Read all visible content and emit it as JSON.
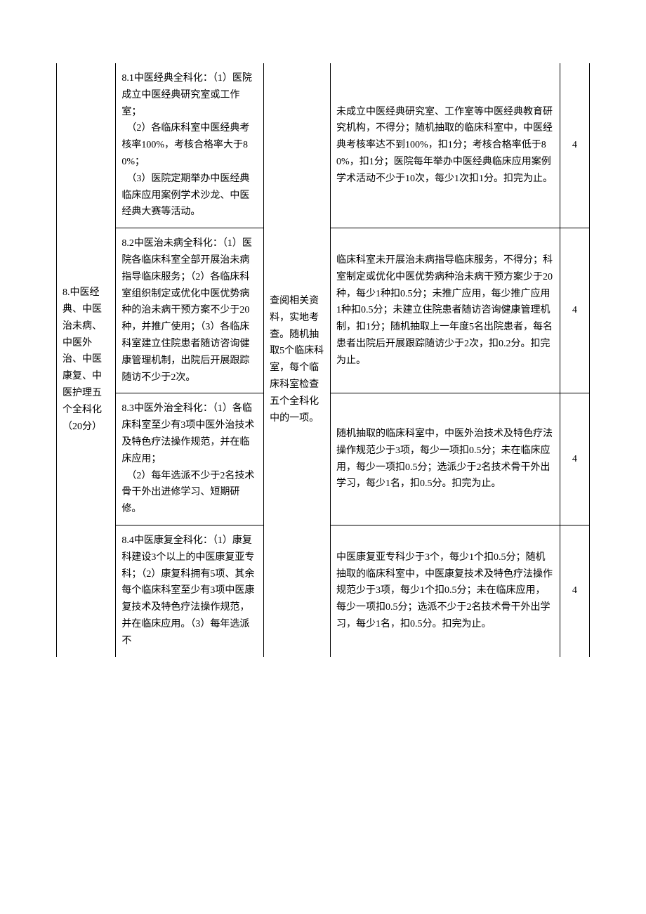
{
  "category": {
    "label": "8.中医经典、中医治未病、中医外治、中医康复、中医护理五个全科化（20分）"
  },
  "method": "查阅相关资料，实地考查。随机抽取5个临床科室，每个临床科室检查五个全科化中的一项。",
  "rows": [
    {
      "criteria": "8.1中医经典全科化：（1）医院成立中医经典研究室或工作室；\n　（2）各临床科室中医经典考核率100%，考核合格率大于80%；\n　（3）医院定期举办中医经典临床应用案例学术沙龙、中医经典大赛等活动。",
      "deduct": "未成立中医经典研究室、工作室等中医经典教育研究机构，不得分；随机抽取的临床科室中，中医经典考核率达不到100%，扣1分；考核合格率低于80%，扣1分；医院每年举办中医经典临床应用案例学术活动不少于10次，每少1次扣1分。扣完为止。",
      "score": "4"
    },
    {
      "criteria": "8.2中医治未病全科化：（1）医院各临床科室全部开展治未病指导临床服务；（2）各临床科室组织制定或优化中医优势病种的治未病干预方案不少于20种，并推广使用；（3）各临床科室建立住院患者随访咨询健康管理机制，出院后开展跟踪随访不少于2次。",
      "deduct": "临床科室未开展治未病指导临床服务，不得分；科室制定或优化中医优势病种治未病干预方案少于20种，每少1种扣0.5分；未推广应用，每少推广应用1种扣0.5分；未建立住院患者随访咨询健康管理机制，扣1分；随机抽取上一年度5名出院患者，每名患者出院后开展跟踪随访少于2次，扣0.2分。扣完为止。",
      "score": "4"
    },
    {
      "criteria": "8.3中医外治全科化：（1）各临床科室至少有3项中医外治技术及特色疗法操作规范，并在临床应用；\n　（2）每年选派不少于2名技术骨干外出进修学习、短期研修。",
      "deduct": "随机抽取的临床科室中，中医外治技术及特色疗法操作规范少于3项，每少一项扣0.5分；未在临床应用，每少一项扣0.5分；选派少于2名技术骨干外出学习，每少1名，扣0.5分。扣完为止。",
      "score": "4"
    },
    {
      "criteria": "8.4中医康复全科化：（1）康复科建设3个以上的中医康复亚专科；（2）康复科拥有5项、其余每个临床科室至少有3项中医康复技术及特色疗法操作规范，并在临床应用。（3）每年选派不",
      "deduct": "中医康复亚专科少于3个，每少1个扣0.5分；随机抽取的临床科室中，中医康复技术及特色疗法操作规范少于3项，每少1个扣0.5分；未在临床应用，每少一项扣0.5分；选派不少于2名技术骨干外出学习，每少1名，扣0.5分。扣完为止。",
      "score": "4"
    }
  ]
}
